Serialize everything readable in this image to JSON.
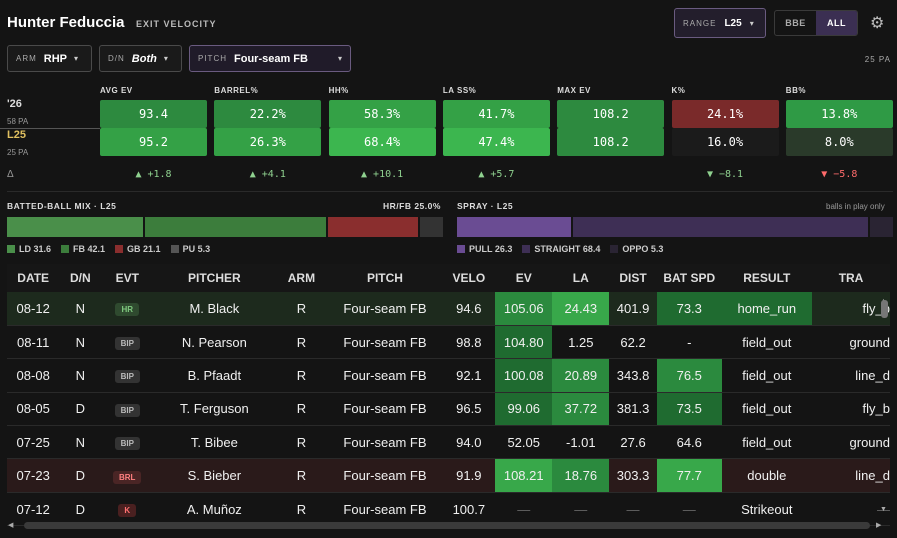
{
  "header": {
    "player": "Hunter Feduccia",
    "subtitle": "EXIT VELOCITY",
    "range_key": "RANGE",
    "range_value": "L25",
    "seg": [
      "BBE",
      "ALL"
    ],
    "pa": "25 PA"
  },
  "filters": [
    {
      "k": "ARM",
      "v": "RHP"
    },
    {
      "k": "D/N",
      "v": "Both"
    },
    {
      "k": "PITCH",
      "v": "Four-seam FB"
    }
  ],
  "rows": {
    "season_label": "'26",
    "season_pa": "58 PA",
    "range_label": "L25",
    "range_pa": "25 PA",
    "delta_symbol": "Δ"
  },
  "metrics": [
    {
      "label": "AVG EV",
      "a": "93.4",
      "b": "95.2",
      "delta": "▲ +1.8",
      "dir": "up"
    },
    {
      "label": "BARREL%",
      "a": "22.2%",
      "b": "26.3%",
      "delta": "▲ +4.1",
      "dir": "up"
    },
    {
      "label": "HH%",
      "a": "58.3%",
      "b": "68.4%",
      "delta": "▲ +10.1",
      "dir": "up"
    },
    {
      "label": "LA SS%",
      "a": "41.7%",
      "b": "47.4%",
      "delta": "▲ +5.7",
      "dir": "up"
    },
    {
      "label": "MAX EV",
      "a": "108.2",
      "b": "108.2",
      "delta": "",
      "dir": ""
    },
    {
      "label": "K%",
      "a": "24.1%",
      "b": "16.0%",
      "delta": "▼ −8.1",
      "dir": "up"
    },
    {
      "label": "BB%",
      "a": "13.8%",
      "b": "8.0%",
      "delta": "▼ −5.8",
      "dir": "dn"
    }
  ],
  "bbmix": {
    "title": "BATTED-BALL MIX · L25",
    "hrfb": "HR/FB 25.0%",
    "segments": [
      {
        "name": "LD",
        "value": 31.6,
        "color": "#4a8f4a"
      },
      {
        "name": "FB",
        "value": 42.1,
        "color": "#3c7d3c"
      },
      {
        "name": "GB",
        "value": 21.1,
        "color": "#8a2e2e"
      },
      {
        "name": "PU",
        "value": 5.3,
        "color": "#333333"
      }
    ],
    "legend": [
      "LD 31.6",
      "FB 42.1",
      "GB 21.1",
      "PU 5.3"
    ]
  },
  "spray": {
    "title": "SPRAY · L25",
    "note": "balls in play only",
    "segments": [
      {
        "name": "PULL",
        "value": 26.3,
        "color": "#6a4c93"
      },
      {
        "name": "STRAIGHT",
        "value": 68.4,
        "color": "#3e2f55"
      },
      {
        "name": "OPPO",
        "value": 5.3,
        "color": "#2a2433"
      }
    ],
    "legend": [
      "PULL 26.3",
      "STRAIGHT 68.4",
      "OPPO 5.3"
    ]
  },
  "table": {
    "headers": [
      "DATE",
      "D/N",
      "EVT",
      "PITCHER",
      "ARM",
      "PITCH",
      "VELO",
      "EV",
      "LA",
      "DIST",
      "BAT SPD",
      "RESULT",
      "TRA"
    ],
    "rows": [
      [
        "08-12",
        "N",
        "HR",
        "M. Black",
        "R",
        "Four-seam FB",
        "94.6",
        "105.06",
        "24.43",
        "401.9",
        "73.3",
        "home_run",
        "fly_b"
      ],
      [
        "08-11",
        "N",
        "BIP",
        "N. Pearson",
        "R",
        "Four-seam FB",
        "98.8",
        "104.80",
        "1.25",
        "62.2",
        "-",
        "field_out",
        "ground"
      ],
      [
        "08-08",
        "N",
        "BIP",
        "B. Pfaadt",
        "R",
        "Four-seam FB",
        "92.1",
        "100.08",
        "20.89",
        "343.8",
        "76.5",
        "field_out",
        "line_d"
      ],
      [
        "08-05",
        "D",
        "BIP",
        "T. Ferguson",
        "R",
        "Four-seam FB",
        "96.5",
        "99.06",
        "37.72",
        "381.3",
        "73.5",
        "field_out",
        "fly_b"
      ],
      [
        "07-25",
        "N",
        "BIP",
        "T. Bibee",
        "R",
        "Four-seam FB",
        "94.0",
        "52.05",
        "-1.01",
        "27.6",
        "64.6",
        "field_out",
        "ground"
      ],
      [
        "07-23",
        "D",
        "BRL",
        "S. Bieber",
        "R",
        "Four-seam FB",
        "91.9",
        "108.21",
        "18.76",
        "303.3",
        "77.7",
        "double",
        "line_d"
      ],
      [
        "07-12",
        "D",
        "K",
        "A. Muñoz",
        "R",
        "Four-seam FB",
        "100.7",
        "—",
        "—",
        "—",
        "—",
        "Strikeout",
        "—"
      ]
    ]
  }
}
